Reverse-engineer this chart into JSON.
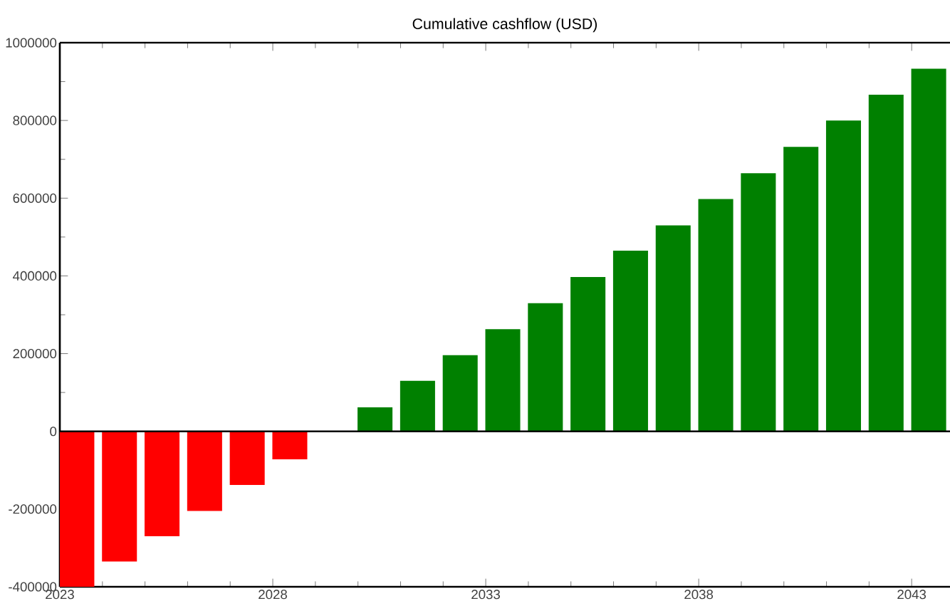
{
  "chart_data": {
    "type": "bar",
    "title": "Cumulative cashflow (USD)",
    "x": [
      2023.4,
      2024.4,
      2025.4,
      2026.4,
      2027.4,
      2028.4,
      2029.4,
      2030.4,
      2031.4,
      2032.4,
      2033.4,
      2034.4,
      2035.4,
      2036.4,
      2037.4,
      2038.4,
      2039.4,
      2040.4,
      2041.4,
      2042.4,
      2043.4
    ],
    "values": [
      -400000,
      -335000,
      -270000,
      -205000,
      -138000,
      -72000,
      0,
      62000,
      130000,
      196000,
      263000,
      330000,
      397000,
      465000,
      530000,
      598000,
      664000,
      732000,
      800000,
      866000,
      933000
    ],
    "colors": [
      "#ff0000",
      "#ff0000",
      "#ff0000",
      "#ff0000",
      "#ff0000",
      "#ff0000",
      "#ff0000",
      "#008000",
      "#008000",
      "#008000",
      "#008000",
      "#008000",
      "#008000",
      "#008000",
      "#008000",
      "#008000",
      "#008000",
      "#008000",
      "#008000",
      "#008000",
      "#008000"
    ],
    "xlim": [
      2023,
      2043.9
    ],
    "xticks": [
      2023,
      2028,
      2033,
      2038,
      2043
    ],
    "ylim": [
      -400000,
      1000000
    ],
    "yticks": [
      -400000,
      -200000,
      0,
      200000,
      400000,
      600000,
      800000,
      1000000
    ],
    "ref_lines": [
      {
        "axis": "y",
        "value": 0,
        "color": "#000000"
      }
    ],
    "grid": false
  }
}
